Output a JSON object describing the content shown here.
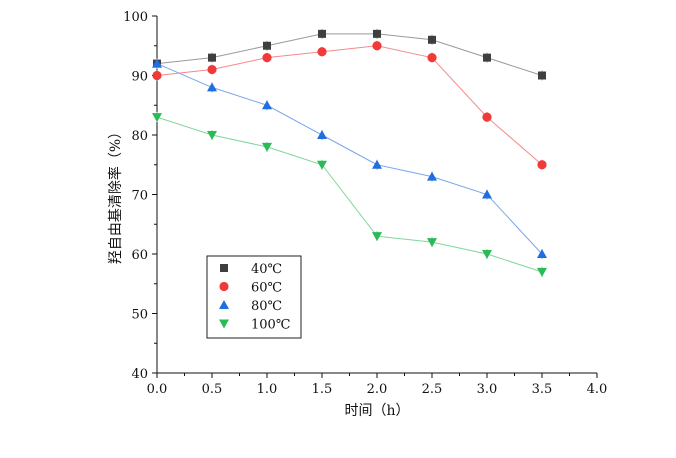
{
  "chart_data": {
    "type": "line",
    "title": "",
    "xlabel": "时间（h）",
    "ylabel": "羟自由基清除率（%）",
    "xlim": [
      0,
      4
    ],
    "ylim": [
      40,
      100
    ],
    "xticks": [
      "0.0",
      "0.5",
      "1.0",
      "1.5",
      "2.0",
      "2.5",
      "3.0",
      "3.5",
      "4.0"
    ],
    "yticks": [
      "40",
      "50",
      "60",
      "70",
      "80",
      "90",
      "100"
    ],
    "grid": false,
    "legend_position": "bottom-left",
    "x": [
      0.0,
      0.5,
      1.0,
      1.5,
      2.0,
      2.5,
      3.0,
      3.5
    ],
    "series": [
      {
        "name": "40℃",
        "marker": "square",
        "color": "#3f3f3f",
        "line_color": "#9a9a9a",
        "values": [
          92,
          93,
          95,
          97,
          97,
          96,
          93,
          90
        ]
      },
      {
        "name": "60℃",
        "marker": "circle",
        "color": "#f03a3a",
        "line_color": "#f48a8a",
        "values": [
          90,
          91,
          93,
          94,
          95,
          93,
          83,
          75
        ]
      },
      {
        "name": "80℃",
        "marker": "triangle-up",
        "color": "#1f6fe0",
        "line_color": "#7aa6ea",
        "values": [
          92,
          88,
          85,
          80,
          75,
          73,
          70,
          60
        ]
      },
      {
        "name": "100℃",
        "marker": "triangle-down",
        "color": "#2aba58",
        "line_color": "#7fd69a",
        "values": [
          83,
          80,
          78,
          75,
          63,
          62,
          60,
          57
        ]
      }
    ]
  }
}
